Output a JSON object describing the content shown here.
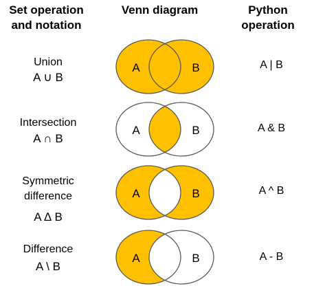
{
  "headers": {
    "col1": "Set operation and notation",
    "col2": "Venn diagram",
    "col3": "Python operation"
  },
  "colors": {
    "fill": "#FFC000",
    "stroke": "#595959",
    "background": "#FFFFFF"
  },
  "rows": [
    {
      "name": "Union",
      "notation": "A ∪ B",
      "python": "A | B",
      "left_label": "A",
      "right_label": "B",
      "shade": "union"
    },
    {
      "name": "Intersection",
      "notation": "A ∩ B",
      "python": "A & B",
      "left_label": "A",
      "right_label": "B",
      "shade": "intersection"
    },
    {
      "name_line1": "Symmetric",
      "name_line2": "difference",
      "notation": "A ∆ B",
      "python": "A ^ B",
      "left_label": "A",
      "right_label": "B",
      "shade": "symmetric-difference"
    },
    {
      "name": "Difference",
      "notation": "A \\ B",
      "python": "A - B",
      "left_label": "A",
      "right_label": "B",
      "shade": "difference"
    }
  ]
}
